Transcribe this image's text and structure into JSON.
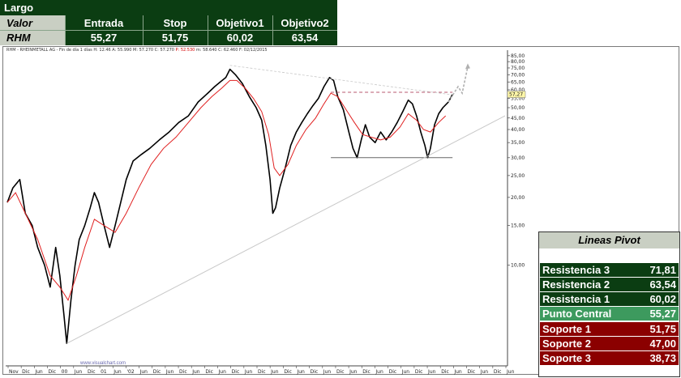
{
  "trade": {
    "title": "Largo",
    "headers": [
      "Valor",
      "Entrada",
      "Stop",
      "Objetivo1",
      "Objetivo2"
    ],
    "row": [
      "RHM",
      "55,27",
      "51,75",
      "60,02",
      "63,54"
    ]
  },
  "chart_info": {
    "prefix": "RHM - RHEINMETALL AG - Fin de día 1 días",
    "ohlc": "H: 12.46  A: 55.990  M: 57.270  C: 57.270",
    "p_text": "P: 52.530",
    "tail": "m: 58.640  C: 62.460  F: 02/12/2015"
  },
  "watermark": "www.visualchart.com",
  "colors": {
    "price": "#000000",
    "ma": "#e02020",
    "support": "#666666",
    "trend": "#c8c8c8",
    "dashed": "#a02040",
    "dark_green": "#0b3d12",
    "red_row": "#8b0000",
    "mid_green": "#3d9a5e"
  },
  "chart_data": {
    "type": "line",
    "scale": "log",
    "ylim": [
      3.7,
      87
    ],
    "y_ticks": [
      {
        "label": "85,00",
        "value": 85
      },
      {
        "label": "80,00",
        "value": 80
      },
      {
        "label": "75,00",
        "value": 75
      },
      {
        "label": "70,00",
        "value": 70
      },
      {
        "label": "65,00",
        "value": 65
      },
      {
        "label": "60,00",
        "value": 60
      },
      {
        "label": "55,00",
        "value": 55
      },
      {
        "label": "50,00",
        "value": 50
      },
      {
        "label": "45,00",
        "value": 45
      },
      {
        "label": "40,00",
        "value": 40
      },
      {
        "label": "35,00",
        "value": 35
      },
      {
        "label": "30,00",
        "value": 30
      },
      {
        "label": "25,00",
        "value": 25
      },
      {
        "label": "20,00",
        "value": 20
      },
      {
        "label": "15,00",
        "value": 15
      },
      {
        "label": "10,00",
        "value": 10
      }
    ],
    "last_price_label": "57,27",
    "last_price": 57.27,
    "x_labels": [
      "Nov",
      "Dic",
      "Jun",
      "Dic",
      "00",
      "Jun",
      "Dic",
      "01",
      "Jun",
      "'02",
      "Jun",
      "Dic",
      "Jun",
      "Dic",
      "Jun",
      "Dic",
      "Jun",
      "Dic",
      "Jun",
      "Dic",
      "Jun",
      "Dic",
      "Jun",
      "Dic",
      "Jun",
      "Dic",
      "Jun",
      "Dic",
      "Jun",
      "Dic",
      "Jun",
      "Dic",
      "Jun",
      "Dic",
      "Jun",
      "Dic",
      "Jun",
      "Dic",
      "Jun"
    ],
    "price_path": [
      [
        0,
        19
      ],
      [
        4,
        22
      ],
      [
        9,
        24
      ],
      [
        13,
        17
      ],
      [
        18,
        15
      ],
      [
        22,
        12
      ],
      [
        27,
        10
      ],
      [
        31,
        8
      ],
      [
        35,
        12
      ],
      [
        38,
        9
      ],
      [
        41,
        6
      ],
      [
        43,
        4.5
      ],
      [
        46,
        7
      ],
      [
        49,
        10
      ],
      [
        52,
        13
      ],
      [
        56,
        15
      ],
      [
        60,
        18
      ],
      [
        63,
        21
      ],
      [
        66,
        19
      ],
      [
        70,
        15
      ],
      [
        74,
        12
      ],
      [
        78,
        15
      ],
      [
        82,
        19
      ],
      [
        86,
        24
      ],
      [
        91,
        29
      ],
      [
        97,
        31
      ],
      [
        103,
        33
      ],
      [
        110,
        36
      ],
      [
        117,
        39
      ],
      [
        124,
        43
      ],
      [
        131,
        46
      ],
      [
        138,
        53
      ],
      [
        145,
        58
      ],
      [
        150,
        62
      ],
      [
        154,
        65
      ],
      [
        158,
        68
      ],
      [
        161,
        74
      ],
      [
        165,
        70
      ],
      [
        170,
        64
      ],
      [
        175,
        56
      ],
      [
        180,
        50
      ],
      [
        184,
        44
      ],
      [
        187,
        34
      ],
      [
        190,
        24
      ],
      [
        192,
        17
      ],
      [
        194,
        18
      ],
      [
        197,
        22
      ],
      [
        201,
        27
      ],
      [
        205,
        34
      ],
      [
        209,
        39
      ],
      [
        213,
        43
      ],
      [
        217,
        47
      ],
      [
        221,
        51
      ],
      [
        225,
        55
      ],
      [
        229,
        62
      ],
      [
        233,
        68
      ],
      [
        236,
        66
      ],
      [
        239,
        56
      ],
      [
        243,
        49
      ],
      [
        247,
        39
      ],
      [
        250,
        33
      ],
      [
        253,
        30
      ],
      [
        256,
        36
      ],
      [
        259,
        42
      ],
      [
        262,
        37
      ],
      [
        266,
        35
      ],
      [
        270,
        39
      ],
      [
        274,
        36
      ],
      [
        278,
        39
      ],
      [
        282,
        43
      ],
      [
        286,
        48
      ],
      [
        290,
        54
      ],
      [
        293,
        52
      ],
      [
        296,
        46
      ],
      [
        299,
        39
      ],
      [
        302,
        34
      ],
      [
        304,
        30
      ],
      [
        306,
        33
      ],
      [
        309,
        42
      ],
      [
        312,
        47
      ],
      [
        315,
        50
      ],
      [
        319,
        53
      ],
      [
        322,
        57.3
      ]
    ],
    "ma_path": [
      [
        0,
        19
      ],
      [
        6,
        21
      ],
      [
        13,
        17
      ],
      [
        22,
        13
      ],
      [
        31,
        9
      ],
      [
        38,
        8
      ],
      [
        44,
        7
      ],
      [
        50,
        9
      ],
      [
        56,
        12
      ],
      [
        63,
        16
      ],
      [
        70,
        15
      ],
      [
        78,
        14
      ],
      [
        86,
        17
      ],
      [
        95,
        22
      ],
      [
        104,
        28
      ],
      [
        113,
        33
      ],
      [
        122,
        37
      ],
      [
        131,
        43
      ],
      [
        140,
        50
      ],
      [
        148,
        56
      ],
      [
        155,
        61
      ],
      [
        161,
        66
      ],
      [
        166,
        66
      ],
      [
        172,
        61
      ],
      [
        178,
        55
      ],
      [
        184,
        48
      ],
      [
        189,
        38
      ],
      [
        193,
        27
      ],
      [
        197,
        25
      ],
      [
        203,
        28
      ],
      [
        209,
        34
      ],
      [
        216,
        40
      ],
      [
        223,
        45
      ],
      [
        229,
        52
      ],
      [
        234,
        58
      ],
      [
        239,
        56
      ],
      [
        245,
        49
      ],
      [
        251,
        43
      ],
      [
        257,
        38
      ],
      [
        263,
        37
      ],
      [
        270,
        36
      ],
      [
        277,
        37
      ],
      [
        284,
        41
      ],
      [
        290,
        47
      ],
      [
        296,
        44
      ],
      [
        301,
        40
      ],
      [
        306,
        39
      ],
      [
        312,
        43
      ],
      [
        317,
        46
      ]
    ],
    "support_line": {
      "value": 30,
      "x": [
        234,
        322
      ]
    },
    "resistance_line": {
      "value": 58.5,
      "x": [
        234,
        322
      ]
    },
    "upper_trend": [
      [
        161,
        77
      ],
      [
        322,
        57
      ]
    ],
    "lower_trend": [
      [
        43,
        4.5
      ],
      [
        360,
        46
      ]
    ],
    "projection": [
      [
        319,
        53
      ],
      [
        326,
        62
      ],
      [
        329,
        58
      ],
      [
        333,
        76
      ]
    ]
  },
  "pivots": {
    "title": "Lineas Pivot",
    "rows": [
      {
        "label": "Resistencia 3",
        "value": "71,81"
      },
      {
        "label": "Resistencia 2",
        "value": "63,54"
      },
      {
        "label": "Resistencia 1",
        "value": "60,02"
      },
      {
        "label": "Punto Central",
        "value": "55,27"
      },
      {
        "label": "Soporte 1",
        "value": "51,75"
      },
      {
        "label": "Soporte 2",
        "value": "47,00"
      },
      {
        "label": "Soporte 3",
        "value": "38,73"
      }
    ]
  }
}
